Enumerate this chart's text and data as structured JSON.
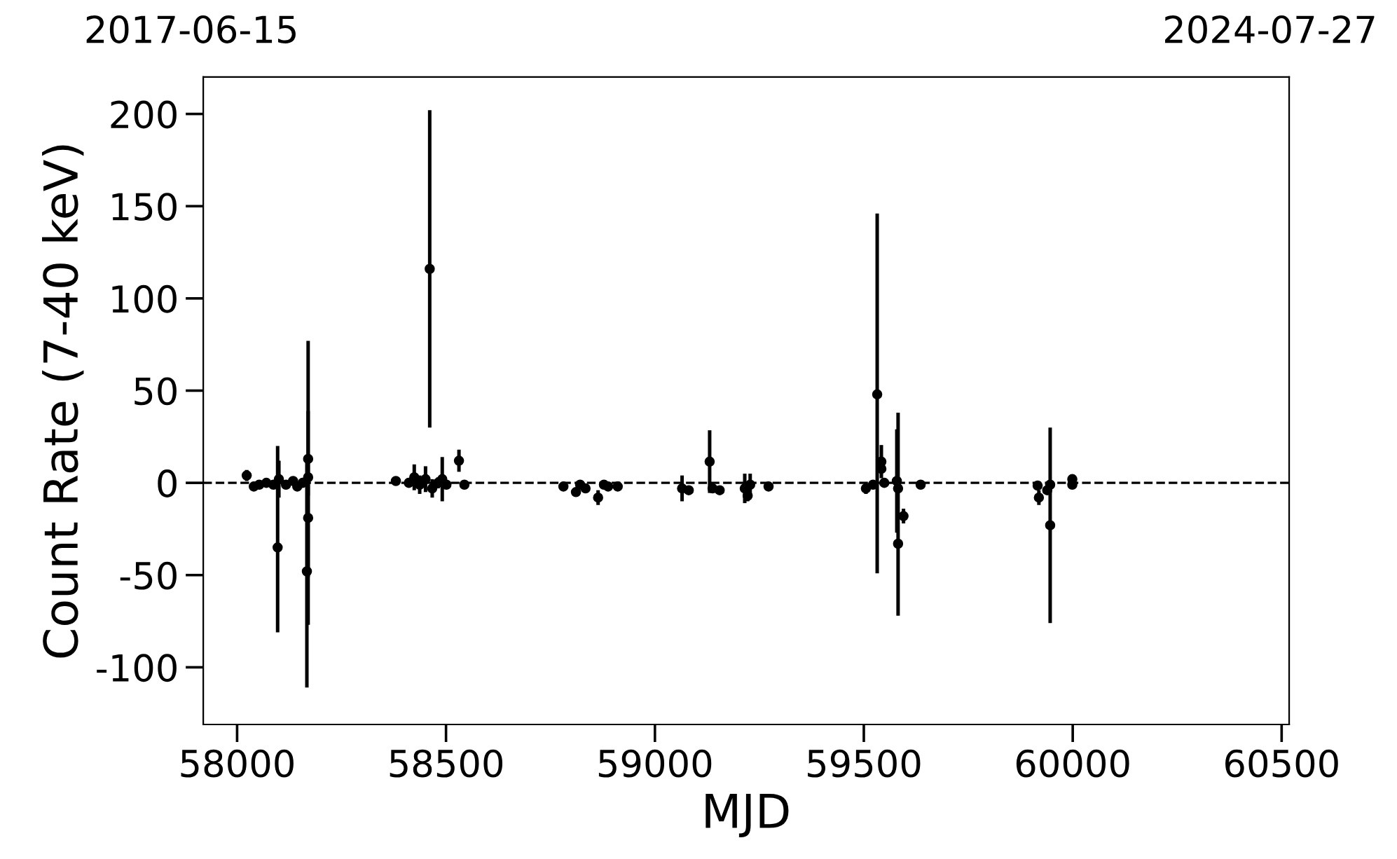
{
  "chart_data": {
    "type": "scatter",
    "xlabel": "MJD",
    "ylabel": "Count Rate (7-40 keV)",
    "xlim": [
      57919,
      60518
    ],
    "xticks": [
      58000,
      58500,
      59000,
      59500,
      60000,
      60500
    ],
    "ylim": [
      -131,
      220
    ],
    "yticks": [
      -100,
      -50,
      0,
      50,
      100,
      150,
      200
    ],
    "annotations": [
      "2017-06-15",
      "2024-07-27"
    ],
    "marker": "circle",
    "grid": false,
    "legend": false,
    "ref_lines": [
      {
        "axis": "y",
        "value": 0,
        "color": "#000000",
        "line_style": "dashed"
      }
    ],
    "series": [
      {
        "color": "#000000",
        "x": [
          58023,
          58040,
          58053,
          58070,
          58087,
          58097,
          58100,
          58117,
          58134,
          58144,
          58157,
          58167,
          58170,
          58170,
          58170,
          58380,
          58411,
          58424,
          58437,
          58451,
          58461,
          58467,
          58481,
          58491,
          58501,
          58531,
          58544,
          58781,
          58811,
          58821,
          58834,
          58864,
          58878,
          58888,
          58911,
          59065,
          59081,
          59131,
          59138,
          59155,
          59215,
          59222,
          59228,
          59272,
          59505,
          59522,
          59532,
          59542,
          59542,
          59549,
          59579,
          59582,
          59595,
          59582,
          59636,
          59916,
          59919,
          59939,
          59946,
          59946,
          59999,
          59999
        ],
        "values": [
          4,
          -2,
          -1,
          0,
          -1,
          -35,
          2,
          -1,
          1,
          -2,
          0,
          -48,
          13,
          -19,
          3,
          1,
          0,
          3,
          -1,
          2,
          116,
          -3,
          0,
          2,
          -1,
          12,
          -1,
          -2,
          -5,
          -1,
          -3,
          -8,
          -1,
          -2,
          -2,
          -3,
          -4,
          11.5,
          -3,
          -4,
          -3,
          -7,
          -1,
          -2,
          -3,
          -1,
          48,
          11.5,
          7.6,
          0,
          1,
          -3,
          -18,
          -33,
          -1,
          -1.5,
          -8,
          -4,
          -1,
          -23,
          2,
          -1
        ],
        "errors": [
          3,
          2,
          1,
          1,
          1,
          [
            -81,
            20
          ],
          10,
          1,
          2,
          1,
          1,
          [
            -111,
            15
          ],
          [
            -51,
            77
          ],
          [
            -77,
            39
          ],
          10,
          2,
          1,
          7,
          5,
          7,
          [
            30,
            202
          ],
          5,
          3,
          12,
          1,
          6,
          1,
          2,
          2,
          1,
          1,
          4,
          1,
          1,
          1,
          7,
          2,
          17,
          2,
          2,
          8,
          3,
          6,
          1,
          3,
          2,
          [
            -49,
            146
          ],
          9,
          2,
          2,
          28,
          2,
          4,
          [
            -72,
            38
          ],
          1,
          1,
          4,
          2,
          1,
          [
            -76,
            30
          ],
          2,
          1
        ]
      }
    ]
  }
}
